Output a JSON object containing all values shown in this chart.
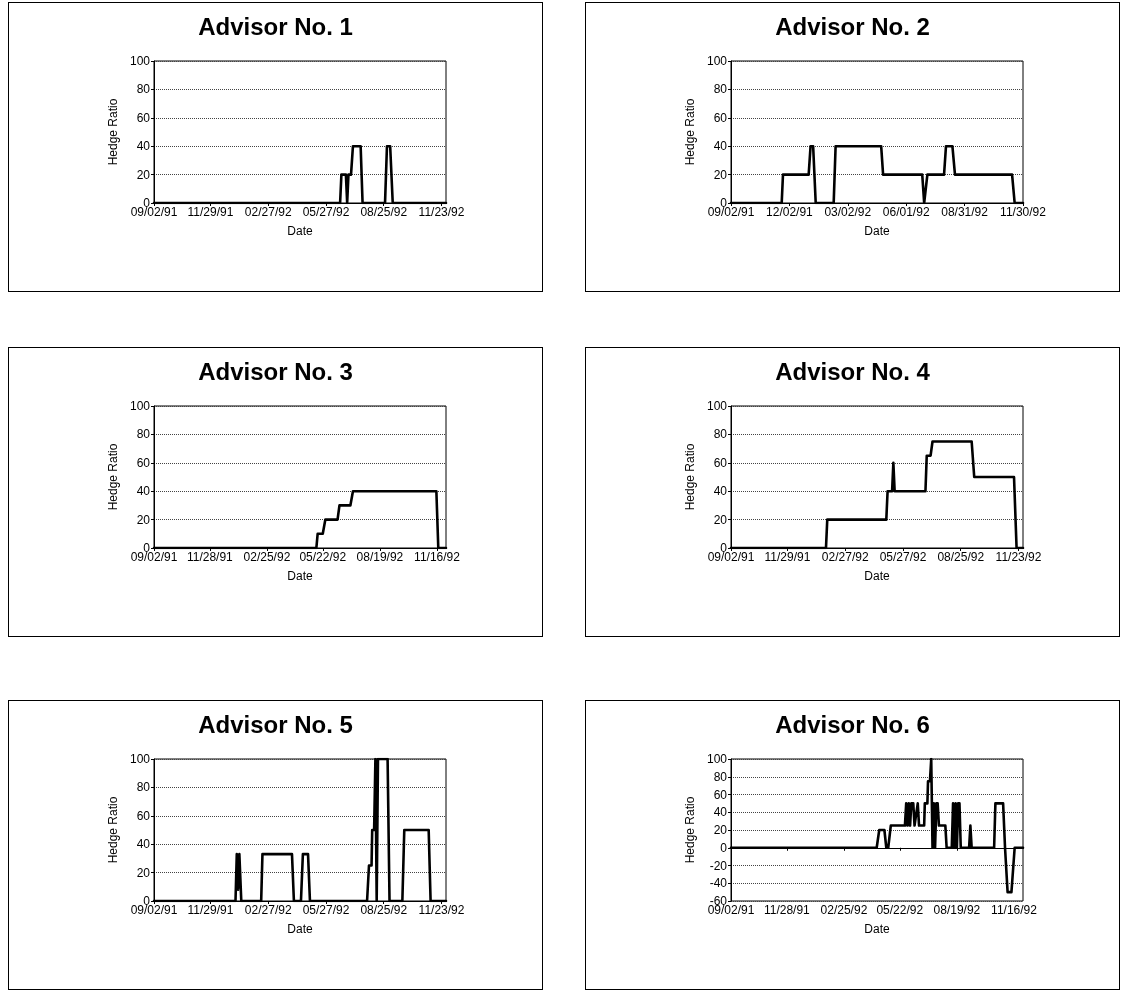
{
  "chart_data": [
    {
      "type": "line",
      "title": "Advisor No. 1",
      "xlabel": "Date",
      "ylabel": "Hedge Ratio",
      "color": "#000000",
      "marker": "none",
      "grid": "y",
      "x": [
        "1991-09-02",
        "1992-06-18",
        "1992-06-20",
        "1992-06-27",
        "1992-06-29",
        "1992-07-01",
        "1992-07-05",
        "1992-07-08",
        "1992-07-20",
        "1992-07-23",
        "1992-08-27",
        "1992-08-30",
        "1992-09-04",
        "1992-09-08",
        "1992-11-30"
      ],
      "values": [
        0,
        0,
        20,
        20,
        0,
        20,
        20,
        40,
        40,
        0,
        0,
        40,
        40,
        0,
        0
      ],
      "xlim": [
        "1991-09-02",
        "1992-11-30"
      ],
      "xticks": [
        {
          "value": "1991-09-02",
          "label": "09/02/91"
        },
        {
          "value": "1991-11-29",
          "label": "11/29/91"
        },
        {
          "value": "1992-02-27",
          "label": "02/27/92"
        },
        {
          "value": "1992-05-27",
          "label": "05/27/92"
        },
        {
          "value": "1992-08-25",
          "label": "08/25/92"
        },
        {
          "value": "1992-11-23",
          "label": "11/23/92"
        }
      ],
      "ylim": [
        0,
        100
      ],
      "yticks": [
        0,
        20,
        40,
        60,
        80,
        100
      ]
    },
    {
      "type": "line",
      "title": "Advisor No. 2",
      "xlabel": "Date",
      "ylabel": "Hedge Ratio",
      "color": "#000000",
      "marker": "none",
      "grid": "y",
      "x": [
        "1991-09-02",
        "1991-11-20",
        "1991-11-22",
        "1992-01-01",
        "1992-01-04",
        "1992-01-08",
        "1992-01-12",
        "1992-02-09",
        "1992-02-12",
        "1992-04-23",
        "1992-04-26",
        "1992-06-26",
        "1992-06-29",
        "1992-07-04",
        "1992-07-30",
        "1992-08-02",
        "1992-08-12",
        "1992-08-16",
        "1992-11-13",
        "1992-11-17",
        "1992-11-30"
      ],
      "values": [
        0,
        0,
        20,
        20,
        40,
        40,
        0,
        0,
        40,
        40,
        20,
        20,
        0,
        20,
        20,
        40,
        40,
        20,
        20,
        0,
        0
      ],
      "xlim": [
        "1991-09-02",
        "1992-11-30"
      ],
      "xticks": [
        {
          "value": "1991-09-02",
          "label": "09/02/91"
        },
        {
          "value": "1991-12-02",
          "label": "12/02/91"
        },
        {
          "value": "1992-03-02",
          "label": "03/02/92"
        },
        {
          "value": "1992-06-01",
          "label": "06/01/92"
        },
        {
          "value": "1992-08-31",
          "label": "08/31/92"
        },
        {
          "value": "1992-11-30",
          "label": "11/30/92"
        }
      ],
      "ylim": [
        0,
        100
      ],
      "yticks": [
        0,
        20,
        40,
        60,
        80,
        100
      ]
    },
    {
      "type": "line",
      "title": "Advisor No. 3",
      "xlabel": "Date",
      "ylabel": "Hedge Ratio",
      "color": "#000000",
      "marker": "none",
      "grid": "y",
      "x": [
        "1991-09-02",
        "1992-05-12",
        "1992-05-14",
        "1992-05-22",
        "1992-05-26",
        "1992-06-14",
        "1992-06-17",
        "1992-07-04",
        "1992-07-08",
        "1992-11-15",
        "1992-11-18",
        "1992-11-30"
      ],
      "values": [
        0,
        0,
        10,
        10,
        20,
        20,
        30,
        30,
        40,
        40,
        0,
        0
      ],
      "xlim": [
        "1991-09-02",
        "1992-11-30"
      ],
      "xticks": [
        {
          "value": "1991-09-02",
          "label": "09/02/91"
        },
        {
          "value": "1991-11-28",
          "label": "11/28/91"
        },
        {
          "value": "1992-02-25",
          "label": "02/25/92"
        },
        {
          "value": "1992-05-22",
          "label": "05/22/92"
        },
        {
          "value": "1992-08-19",
          "label": "08/19/92"
        },
        {
          "value": "1992-11-16",
          "label": "11/16/92"
        }
      ],
      "ylim": [
        0,
        100
      ],
      "yticks": [
        0,
        20,
        40,
        60,
        80,
        100
      ]
    },
    {
      "type": "line",
      "title": "Advisor No. 4",
      "xlabel": "Date",
      "ylabel": "Hedge Ratio",
      "color": "#000000",
      "marker": "none",
      "grid": "y",
      "x": [
        "1991-09-02",
        "1992-01-28",
        "1992-01-30",
        "1992-05-01",
        "1992-05-03",
        "1992-05-10",
        "1992-05-12",
        "1992-05-14",
        "1992-07-01",
        "1992-07-03",
        "1992-07-09",
        "1992-07-12",
        "1992-09-11",
        "1992-09-15",
        "1992-11-16",
        "1992-11-20",
        "1992-11-30"
      ],
      "values": [
        0,
        0,
        20,
        20,
        40,
        40,
        60,
        40,
        40,
        65,
        65,
        75,
        75,
        50,
        50,
        0,
        0
      ],
      "xlim": [
        "1991-09-02",
        "1992-11-30"
      ],
      "xticks": [
        {
          "value": "1991-09-02",
          "label": "09/02/91"
        },
        {
          "value": "1991-11-29",
          "label": "11/29/91"
        },
        {
          "value": "1992-02-27",
          "label": "02/27/92"
        },
        {
          "value": "1992-05-27",
          "label": "05/27/92"
        },
        {
          "value": "1992-08-25",
          "label": "08/25/92"
        },
        {
          "value": "1992-11-23",
          "label": "11/23/92"
        }
      ],
      "ylim": [
        0,
        100
      ],
      "yticks": [
        0,
        20,
        40,
        60,
        80,
        100
      ]
    },
    {
      "type": "line",
      "title": "Advisor No. 5",
      "xlabel": "Date",
      "ylabel": "Hedge Ratio",
      "color": "#000000",
      "marker": "none",
      "grid": "y",
      "x": [
        "1991-09-02",
        "1992-01-07",
        "1992-01-09",
        "1992-01-11",
        "1992-01-13",
        "1992-01-16",
        "1992-02-16",
        "1992-02-18",
        "1992-04-04",
        "1992-04-07",
        "1992-04-18",
        "1992-04-21",
        "1992-04-29",
        "1992-05-02",
        "1992-07-30",
        "1992-08-02",
        "1992-08-06",
        "1992-08-07",
        "1992-08-10",
        "1992-08-12",
        "1992-08-14",
        "1992-08-16",
        "1992-08-31",
        "1992-09-03",
        "1992-09-23",
        "1992-09-26",
        "1992-11-03",
        "1992-11-06",
        "1992-11-30"
      ],
      "values": [
        0,
        0,
        33,
        8,
        33,
        0,
        0,
        33,
        33,
        0,
        0,
        33,
        33,
        0,
        0,
        25,
        25,
        50,
        50,
        100,
        0,
        100,
        100,
        0,
        0,
        50,
        50,
        0,
        0
      ],
      "xlim": [
        "1991-09-02",
        "1992-11-30"
      ],
      "xticks": [
        {
          "value": "1991-09-02",
          "label": "09/02/91"
        },
        {
          "value": "1991-11-29",
          "label": "11/29/91"
        },
        {
          "value": "1992-02-27",
          "label": "02/27/92"
        },
        {
          "value": "1992-05-27",
          "label": "05/27/92"
        },
        {
          "value": "1992-08-25",
          "label": "08/25/92"
        },
        {
          "value": "1992-11-23",
          "label": "11/23/92"
        }
      ],
      "ylim": [
        0,
        100
      ],
      "yticks": [
        0,
        20,
        40,
        60,
        80,
        100
      ]
    },
    {
      "type": "line",
      "title": "Advisor No. 6",
      "xlabel": "Date",
      "ylabel": "Hedge Ratio",
      "color": "#000000",
      "marker": "none",
      "grid": "y",
      "x": [
        "1991-09-02",
        "1992-04-16",
        "1992-04-20",
        "1992-04-28",
        "1992-05-01",
        "1992-05-04",
        "1992-05-08",
        "1992-05-30",
        "1992-06-01",
        "1992-06-03",
        "1992-06-05",
        "1992-06-07",
        "1992-06-09",
        "1992-06-12",
        "1992-06-14",
        "1992-06-19",
        "1992-06-21",
        "1992-06-29",
        "1992-06-30",
        "1992-07-04",
        "1992-07-05",
        "1992-07-08",
        "1992-07-10",
        "1992-07-12",
        "1992-07-14",
        "1992-07-16",
        "1992-07-18",
        "1992-07-20",
        "1992-07-22",
        "1992-08-01",
        "1992-08-03",
        "1992-08-11",
        "1992-08-13",
        "1992-08-15",
        "1992-08-17",
        "1992-08-19",
        "1992-08-21",
        "1992-08-23",
        "1992-08-25",
        "1992-09-07",
        "1992-09-09",
        "1992-09-11",
        "1992-10-16",
        "1992-10-18",
        "1992-10-30",
        "1992-11-02",
        "1992-11-06",
        "1992-11-12",
        "1992-11-17",
        "1992-11-30"
      ],
      "values": [
        0,
        0,
        20,
        20,
        0,
        0,
        25,
        25,
        50,
        25,
        50,
        25,
        50,
        50,
        25,
        50,
        25,
        25,
        50,
        50,
        75,
        75,
        100,
        0,
        50,
        0,
        50,
        50,
        25,
        25,
        0,
        0,
        50,
        0,
        50,
        0,
        50,
        50,
        0,
        0,
        25,
        0,
        0,
        50,
        50,
        0,
        -50,
        -50,
        0,
        0
      ],
      "xlim": [
        "1991-09-02",
        "1992-11-30"
      ],
      "xticks": [
        {
          "value": "1991-09-02",
          "label": "09/02/91"
        },
        {
          "value": "1991-11-28",
          "label": "11/28/91"
        },
        {
          "value": "1992-02-25",
          "label": "02/25/92"
        },
        {
          "value": "1992-05-22",
          "label": "05/22/92"
        },
        {
          "value": "1992-08-19",
          "label": "08/19/92"
        },
        {
          "value": "1992-11-16",
          "label": "11/16/92"
        }
      ],
      "ylim": [
        -60,
        100
      ],
      "yticks": [
        -60,
        -40,
        -20,
        0,
        20,
        40,
        60,
        80,
        100
      ]
    }
  ]
}
